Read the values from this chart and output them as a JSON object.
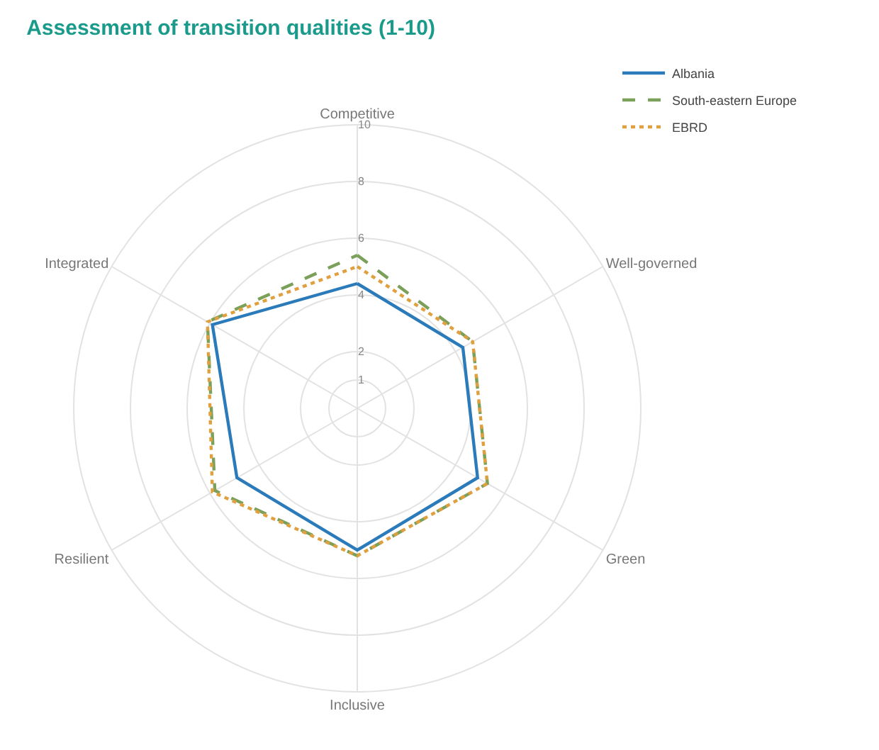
{
  "chart_data": {
    "type": "radar",
    "title": "Assessment of transition qualities (1-10)",
    "categories": [
      "Competitive",
      "Well-governed",
      "Green",
      "Inclusive",
      "Resilient",
      "Integrated"
    ],
    "series": [
      {
        "name": "Albania",
        "color": "#2b7bba",
        "line_style": "solid",
        "values": [
          4.4,
          4.3,
          4.9,
          5.0,
          4.9,
          5.9
        ]
      },
      {
        "name": "South-eastern Europe",
        "color": "#7aa05a",
        "line_style": "dashed",
        "values": [
          5.4,
          4.7,
          5.3,
          5.2,
          5.8,
          6.1
        ]
      },
      {
        "name": "EBRD",
        "color": "#e0a040",
        "line_style": "dotted",
        "values": [
          5.0,
          4.7,
          5.3,
          5.2,
          5.9,
          6.1
        ]
      }
    ],
    "ylim": [
      0,
      10
    ],
    "yticks": [
      1,
      2,
      4,
      6,
      8,
      10
    ],
    "grid": true,
    "legend": "top right",
    "marker": "none"
  }
}
